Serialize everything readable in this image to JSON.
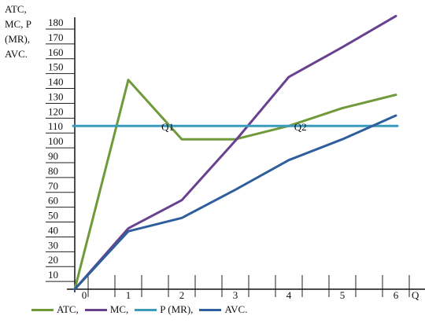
{
  "chart_data": {
    "type": "line",
    "ylabel_lines": [
      "ATC,",
      "MC, P",
      "(MR),",
      "AVC."
    ],
    "xlabel": "Q",
    "x": [
      0,
      1,
      2,
      3,
      4,
      5,
      6
    ],
    "xticks": [
      0,
      1,
      2,
      3,
      4,
      5,
      6
    ],
    "yticks": [
      10,
      20,
      30,
      40,
      50,
      60,
      70,
      80,
      90,
      100,
      110,
      120,
      130,
      140,
      150,
      160,
      170,
      180
    ],
    "ylim": [
      0,
      180
    ],
    "series": [
      {
        "name": "ATC,",
        "color": "#6e9a3a",
        "values": [
          0,
          141,
          101,
          101,
          110,
          122,
          131
        ]
      },
      {
        "name": "MC,",
        "color": "#6a4190",
        "values": [
          0,
          41,
          60,
          100,
          143,
          163,
          184
        ]
      },
      {
        "name": "P (MR),",
        "color": "#3a9bbd",
        "values": [
          110,
          110,
          110,
          110,
          110,
          110,
          110
        ]
      },
      {
        "name": "AVC.",
        "color": "#2e5f9c",
        "values": [
          0,
          39,
          48,
          67,
          87,
          101,
          117
        ]
      }
    ],
    "annotations": [
      {
        "text": "Q1",
        "x": 1.62,
        "y": 108
      },
      {
        "text": "Q2",
        "x": 4.1,
        "y": 108
      }
    ]
  }
}
